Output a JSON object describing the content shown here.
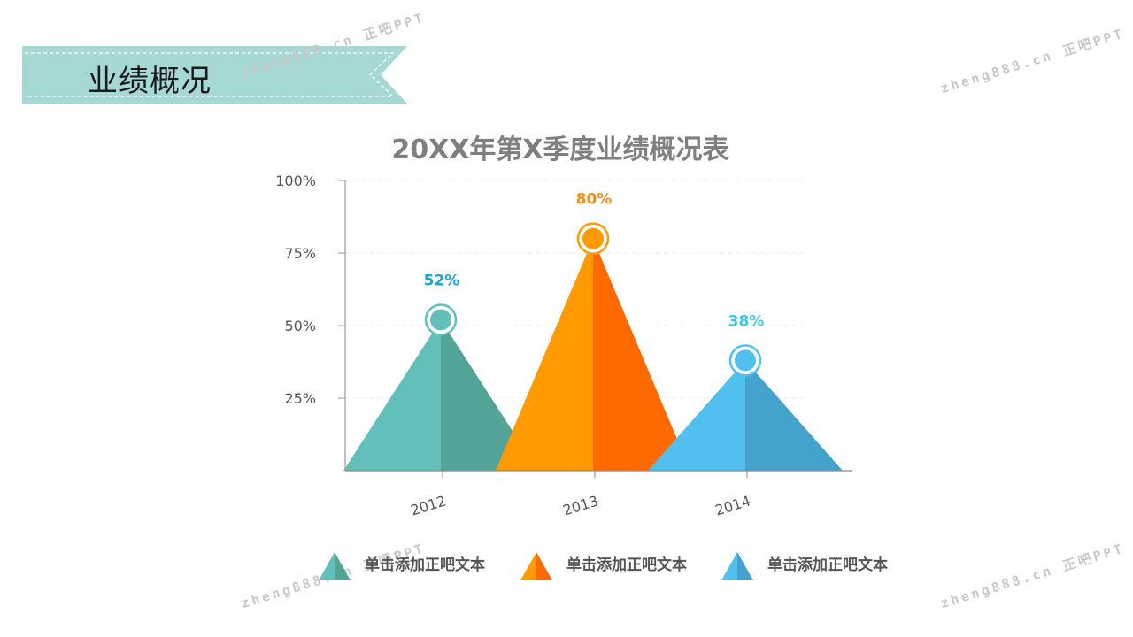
{
  "slide": {
    "title": "业绩概况",
    "watermarks": [
      "zheng888.cn 正吧PPT",
      "zheng888.cn 正吧PPT",
      "zheng888.cn 正吧PPT",
      "zheng888.cn 正吧PPT"
    ],
    "colors": {
      "banner": "#a6d8d5",
      "teal_light": "#63bfb9",
      "teal_dark": "#52a398",
      "orange_light": "#ff9a00",
      "orange_dark": "#ff6a00",
      "blue_light": "#52c0ee",
      "blue_dark": "#44a3cc",
      "title_gray": "#7f7f7f"
    }
  },
  "chart_data": {
    "type": "bar",
    "title": "20XX年第X季度业绩概况表",
    "categories": [
      "2012",
      "2013",
      "2014"
    ],
    "values": [
      52,
      80,
      38
    ],
    "value_labels": [
      "52%",
      "80%",
      "38%"
    ],
    "ylim": [
      0,
      100
    ],
    "yticks": [
      25,
      50,
      75,
      100
    ],
    "ytick_labels": [
      "25%",
      "50%",
      "75%",
      "100%"
    ],
    "grid": true,
    "legend_position": "bottom",
    "legend": [
      "单击添加正吧文本",
      "单击添加正吧文本",
      "单击添加正吧文本"
    ],
    "series_colors": [
      {
        "light": "#63bfb9",
        "dark": "#52a398",
        "label": "#1ba8c4"
      },
      {
        "light": "#ff9a00",
        "dark": "#ff6a00",
        "label": "#f0901e"
      },
      {
        "light": "#52c0ee",
        "dark": "#44a3cc",
        "label": "#44c3e6"
      }
    ]
  }
}
